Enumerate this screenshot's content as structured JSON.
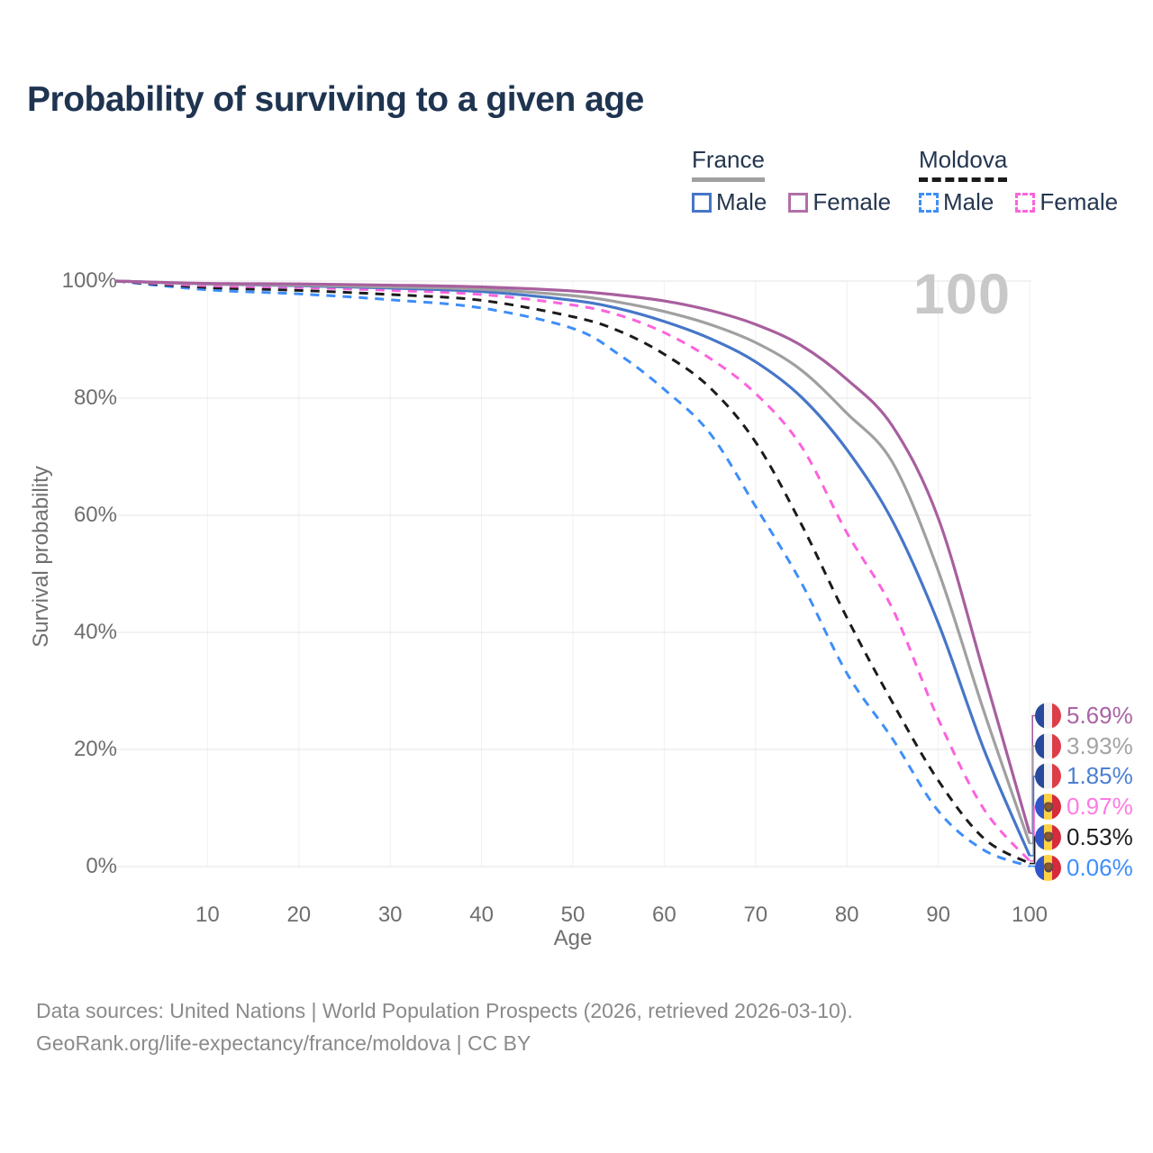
{
  "title": "Probability of surviving to a given age",
  "watermark": "100",
  "colors": {
    "title_text": "#1e3450",
    "legend_text": "#24364f",
    "axis_text": "#6e6e6e",
    "grid_major": "#e6e6e6",
    "grid_minor": "#f0f0f0",
    "watermark": "#c8c8c8",
    "source_text": "#8a8a8a"
  },
  "legend": {
    "groups": [
      {
        "id": "france",
        "label": "France",
        "line_style": "solid",
        "line_color": "#a0a0a0",
        "items": [
          {
            "label": "Male",
            "color": "#4676c8",
            "dashed": false
          },
          {
            "label": "Female",
            "color": "#b070a8",
            "dashed": false
          }
        ]
      },
      {
        "id": "moldova",
        "label": "Moldova",
        "line_style": "dashed",
        "line_color": "#1b1b1b",
        "items": [
          {
            "label": "Male",
            "color": "#3e8ef9",
            "dashed": true
          },
          {
            "label": "Female",
            "color": "#fb63dd",
            "dashed": true
          }
        ]
      }
    ]
  },
  "chart_data": {
    "type": "line",
    "title": "Probability of surviving to a given age",
    "xlabel": "Age",
    "ylabel": "Survival probability",
    "x_range": [
      0,
      100
    ],
    "y_range_pct": [
      0,
      100
    ],
    "x_ticks": [
      10,
      20,
      30,
      40,
      50,
      60,
      70,
      80,
      90,
      100
    ],
    "y_tick_labels": [
      "0%",
      "20%",
      "40%",
      "60%",
      "80%",
      "100%"
    ],
    "y_ticks_pct": [
      0,
      20,
      40,
      60,
      80,
      100
    ],
    "grid": true,
    "legend_position": "top-right",
    "ages": [
      0,
      10,
      20,
      30,
      40,
      50,
      55,
      60,
      65,
      70,
      75,
      80,
      85,
      90,
      95,
      100
    ],
    "series": [
      {
        "name": "Moldova Male",
        "country": "moldova",
        "sex": "male",
        "color": "#3e8ef9",
        "dashed": true,
        "end_label": "0.06%",
        "values": [
          100,
          98.5,
          97.8,
          96.8,
          95.4,
          91.9,
          87.5,
          81.5,
          74.0,
          61.5,
          48.5,
          33.0,
          21.8,
          9.5,
          2.8,
          0.06
        ]
      },
      {
        "name": "Moldova",
        "country": "moldova",
        "sex": "all",
        "color": "#1b1b1b",
        "dashed": true,
        "end_label": "0.53%",
        "values": [
          100,
          98.9,
          98.4,
          97.7,
          96.7,
          93.9,
          91.5,
          87.5,
          81.8,
          72.5,
          58.5,
          42.5,
          28.0,
          14.7,
          4.8,
          0.53
        ]
      },
      {
        "name": "Moldova Female",
        "country": "moldova",
        "sex": "female",
        "color": "#fb63dd",
        "dashed": true,
        "end_label": "0.97%",
        "values": [
          100,
          99.2,
          98.9,
          98.4,
          97.7,
          95.9,
          94.2,
          91.2,
          86.8,
          80.8,
          71.8,
          57.0,
          44.0,
          25.2,
          9.8,
          0.97
        ]
      },
      {
        "name": "France Male",
        "country": "france",
        "sex": "male",
        "color": "#4676c8",
        "dashed": false,
        "end_label": "1.85%",
        "values": [
          100,
          99.5,
          99.2,
          98.8,
          98.2,
          96.7,
          95.3,
          93.1,
          90.2,
          86.2,
          80.2,
          71.2,
          59.0,
          41.6,
          20.0,
          1.85
        ]
      },
      {
        "name": "France",
        "country": "france",
        "sex": "all",
        "color": "#a0a0a0",
        "dashed": false,
        "end_label": "3.93%",
        "values": [
          100,
          99.5,
          99.3,
          99.0,
          98.6,
          97.5,
          96.4,
          94.8,
          92.6,
          89.5,
          84.8,
          77.4,
          69.0,
          50.5,
          26.5,
          3.93
        ]
      },
      {
        "name": "France Female",
        "country": "france",
        "sex": "female",
        "color": "#a85f9e",
        "dashed": false,
        "end_label": "5.69%",
        "values": [
          100,
          99.6,
          99.5,
          99.3,
          99.0,
          98.3,
          97.6,
          96.6,
          95.0,
          92.6,
          89.0,
          83.2,
          75.2,
          59.5,
          33.0,
          5.69
        ]
      }
    ]
  },
  "end_labels": [
    {
      "flag": "france",
      "series": "France Female",
      "text": "5.69%",
      "value": 5.69,
      "text_color": "#aa64a5",
      "line_color": "#a85f9e"
    },
    {
      "flag": "france",
      "series": "France",
      "text": "3.93%",
      "value": 3.93,
      "text_color": "#a3a3a3",
      "line_color": "#a0a0a0"
    },
    {
      "flag": "france",
      "series": "France Male",
      "text": "1.85%",
      "value": 1.85,
      "text_color": "#4d7fd1",
      "line_color": "#4676c8"
    },
    {
      "flag": "moldova",
      "series": "Moldova Female",
      "text": "0.97%",
      "value": 0.97,
      "text_color": "#ff7ae2",
      "line_color": "#fb63dd"
    },
    {
      "flag": "moldova",
      "series": "Moldova",
      "text": "0.53%",
      "value": 0.53,
      "text_color": "#1e1e1e",
      "line_color": "#1b1b1b"
    },
    {
      "flag": "moldova",
      "series": "Moldova Male",
      "text": "0.06%",
      "value": 0.06,
      "text_color": "#3e8efb",
      "line_color": "#3e8ef9"
    }
  ],
  "source": {
    "line1": "Data sources: United Nations | World Population Prospects (2026, retrieved 2026-03-10).",
    "line2": "GeoRank.org/life-expectancy/france/moldova | CC BY"
  }
}
